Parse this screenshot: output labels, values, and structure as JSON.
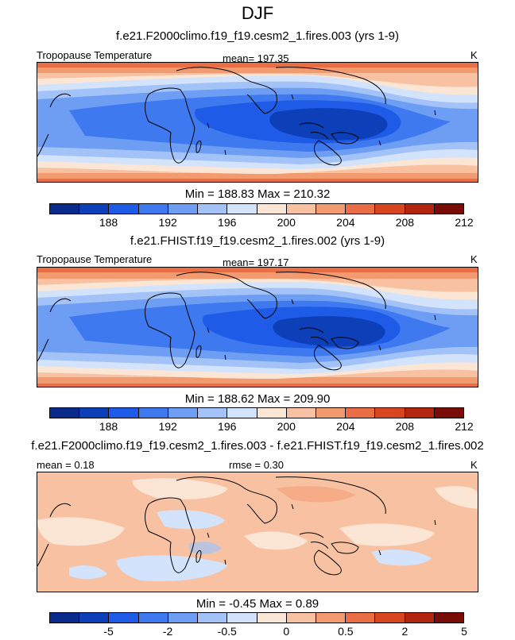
{
  "figure": {
    "title": "DJF"
  },
  "palette": [
    "#0a2a8c",
    "#0d3fb8",
    "#1e5be6",
    "#3e79ef",
    "#6e9ef4",
    "#a3c3f8",
    "#d3e3fb",
    "#fbe6d6",
    "#f8c2a2",
    "#f29b71",
    "#e96d45",
    "#d8461f",
    "#b2260f",
    "#7a0c07"
  ],
  "panels": [
    {
      "case_title": "f.e21.F2000climo.f19_f19.cesm2_1.fires.003 (yrs 1-9)",
      "left_label": "Tropopause Temperature",
      "center_label": "mean= 197.35",
      "units": "K",
      "minmax": "Min = 188.83 Max = 210.32",
      "ticks": [
        "188",
        "192",
        "196",
        "200",
        "204",
        "208",
        "212"
      ],
      "field": "tropopause-temperature"
    },
    {
      "case_title": "f.e21.FHIST.f19_f19.cesm2_1.fires.002 (yrs 1-9)",
      "left_label": "Tropopause Temperature",
      "center_label": "mean= 197.17",
      "units": "K",
      "minmax": "Min = 188.62 Max = 209.90",
      "ticks": [
        "188",
        "192",
        "196",
        "200",
        "204",
        "208",
        "212"
      ],
      "field": "tropopause-temperature"
    },
    {
      "case_title": "f.e21.F2000climo.f19_f19.cesm2_1.fires.003 - f.e21.FHIST.f19_f19.cesm2_1.fires.002",
      "left_label": "mean =   0.18",
      "center_label": "rmse =   0.30",
      "units": "K",
      "minmax": "Min =  -0.45 Max =  0.89",
      "ticks": [
        "-5",
        "-2",
        "-0.5",
        "0",
        "0.5",
        "2",
        "5"
      ],
      "field": "difference"
    }
  ]
}
